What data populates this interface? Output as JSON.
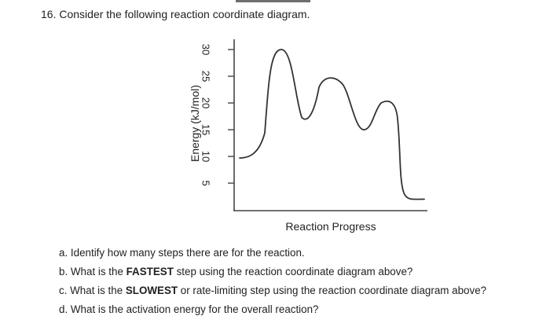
{
  "question": {
    "number": "16.",
    "text": "Consider the following reaction coordinate diagram."
  },
  "chart_data": {
    "type": "line",
    "ylabel": "Energy (kJ/mol)",
    "xlabel": "Reaction Progress",
    "yticks": [
      5,
      10,
      15,
      20,
      25,
      30
    ],
    "ylim": [
      0,
      32
    ],
    "grid": false,
    "legend": "none",
    "line_color": "#333333",
    "curve": {
      "reactant_energy": 10,
      "peaks": [
        30,
        25,
        20
      ],
      "troughs": [
        17,
        15
      ],
      "product_energy": 2
    }
  },
  "sub_questions": [
    {
      "letter": "a.",
      "pre": "Identify how many steps there are for the reaction.",
      "bold": "",
      "post": ""
    },
    {
      "letter": "b.",
      "pre": "What is the ",
      "bold": "FASTEST",
      "post": " step using the reaction coordinate diagram above?"
    },
    {
      "letter": "c.",
      "pre": "What is the ",
      "bold": "SLOWEST",
      "post": " or rate-limiting step using the reaction coordinate diagram above?"
    },
    {
      "letter": "d.",
      "pre": "What is the activation energy for the overall reaction?",
      "bold": "",
      "post": ""
    }
  ]
}
